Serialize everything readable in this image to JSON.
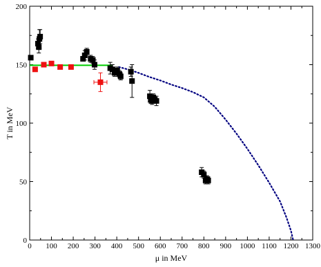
{
  "chart_data": {
    "type": "scatter",
    "title": "",
    "xlabel": "μ in MeV",
    "ylabel": "T in MeV",
    "xlim": [
      0,
      1300
    ],
    "ylim": [
      0,
      200
    ],
    "xticks": [
      "0",
      "100",
      "200",
      "300",
      "400",
      "500",
      "600",
      "700",
      "800",
      "900",
      "1000",
      "1100",
      "1200",
      "1300"
    ],
    "yticks": [
      "0",
      "50",
      "100",
      "150",
      "200"
    ],
    "grid": false,
    "series": [
      {
        "color": "#000000",
        "marker": "square",
        "points": [
          {
            "x": 5,
            "y": 156,
            "yerr": 0
          },
          {
            "x": 38,
            "y": 168,
            "yerr": 4
          },
          {
            "x": 42,
            "y": 165,
            "yerr": 5
          },
          {
            "x": 45,
            "y": 172,
            "yerr": 8
          },
          {
            "x": 48,
            "y": 174,
            "yerr": 6
          },
          {
            "x": 245,
            "y": 155,
            "yerr": 0
          },
          {
            "x": 253,
            "y": 158,
            "yerr": 4
          },
          {
            "x": 262,
            "y": 161,
            "yerr": 3
          },
          {
            "x": 280,
            "y": 155,
            "yerr": 3
          },
          {
            "x": 290,
            "y": 154,
            "yerr": 3
          },
          {
            "x": 298,
            "y": 150,
            "yerr": 4
          },
          {
            "x": 370,
            "y": 147,
            "yerr": 5
          },
          {
            "x": 380,
            "y": 146,
            "yerr": 4
          },
          {
            "x": 390,
            "y": 143,
            "yerr": 3
          },
          {
            "x": 402,
            "y": 145,
            "yerr": 3
          },
          {
            "x": 412,
            "y": 142,
            "yerr": 3
          },
          {
            "x": 418,
            "y": 140,
            "yerr": 3
          },
          {
            "x": 465,
            "y": 144,
            "yerr": 4
          },
          {
            "x": 470,
            "y": 136,
            "yerr": 14
          },
          {
            "x": 552,
            "y": 123,
            "yerr": 5
          },
          {
            "x": 556,
            "y": 120,
            "yerr": 3
          },
          {
            "x": 562,
            "y": 119,
            "yerr": 3
          },
          {
            "x": 568,
            "y": 122,
            "yerr": 3
          },
          {
            "x": 575,
            "y": 120,
            "yerr": 3
          },
          {
            "x": 582,
            "y": 119,
            "yerr": 4
          },
          {
            "x": 790,
            "y": 58,
            "yerr": 4
          },
          {
            "x": 800,
            "y": 56,
            "yerr": 3
          },
          {
            "x": 808,
            "y": 51,
            "yerr": 3
          },
          {
            "x": 815,
            "y": 52,
            "yerr": 3
          },
          {
            "x": 820,
            "y": 51,
            "yerr": 3
          }
        ]
      },
      {
        "color": "#ee1111",
        "marker": "square",
        "points": [
          {
            "x": 25,
            "y": 146,
            "xerr": 0,
            "yerr": 0
          },
          {
            "x": 65,
            "y": 150,
            "xerr": 0,
            "yerr": 0
          },
          {
            "x": 100,
            "y": 151,
            "xerr": 0,
            "yerr": 0
          },
          {
            "x": 140,
            "y": 148,
            "xerr": 0,
            "yerr": 0
          },
          {
            "x": 190,
            "y": 148,
            "xerr": 0,
            "yerr": 0
          },
          {
            "x": 325,
            "y": 135,
            "xerr": 30,
            "yerr": 8
          }
        ]
      }
    ],
    "line": {
      "color": "#00cc00",
      "points": [
        [
          0,
          149.5
        ],
        [
          380,
          149.5
        ]
      ]
    },
    "dotted_curve": {
      "color": "#000080",
      "points": [
        [
          410,
          148
        ],
        [
          450,
          146
        ],
        [
          500,
          143
        ],
        [
          550,
          139.5
        ],
        [
          600,
          136.5
        ],
        [
          650,
          133
        ],
        [
          700,
          130
        ],
        [
          750,
          126.5
        ],
        [
          800,
          122
        ],
        [
          850,
          114
        ],
        [
          900,
          103
        ],
        [
          950,
          91
        ],
        [
          1000,
          78
        ],
        [
          1050,
          64
        ],
        [
          1100,
          49
        ],
        [
          1150,
          33
        ],
        [
          1180,
          19
        ],
        [
          1200,
          8
        ],
        [
          1210,
          0
        ]
      ]
    }
  }
}
